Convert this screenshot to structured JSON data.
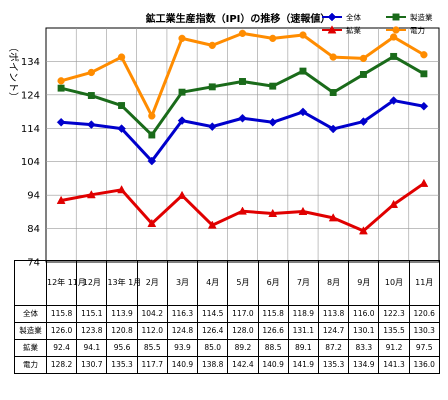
{
  "chart_data": {
    "type": "line",
    "title": "鉱工業生産指数（IPI）の推移（速報値）",
    "ylabel": "（ポイント）",
    "ylim": [
      74,
      144
    ],
    "yticks": [
      74,
      84,
      94,
      104,
      114,
      124,
      134
    ],
    "grid": true,
    "legend_position": "top-right",
    "categories": [
      "12年 11月",
      "12月",
      "13年 1月",
      "2月",
      "3月",
      "4月",
      "5月",
      "6月",
      "7月",
      "8月",
      "9月",
      "10月",
      "11月"
    ],
    "series": [
      {
        "name": "全体",
        "color": "#0000cc",
        "marker": "diamond",
        "values": [
          115.8,
          115.1,
          113.9,
          104.2,
          116.3,
          114.5,
          117.0,
          115.8,
          118.9,
          113.8,
          116.0,
          122.3,
          120.6
        ]
      },
      {
        "name": "製造業",
        "color": "#1a6b1a",
        "marker": "square",
        "values": [
          126.0,
          123.8,
          120.8,
          112.0,
          124.8,
          126.4,
          128.0,
          126.6,
          131.1,
          124.7,
          130.1,
          135.5,
          130.3
        ]
      },
      {
        "name": "鉱業",
        "color": "#e00000",
        "marker": "triangle",
        "values": [
          92.4,
          94.1,
          95.6,
          85.5,
          93.9,
          85.0,
          89.2,
          88.5,
          89.1,
          87.2,
          83.3,
          91.2,
          97.5
        ]
      },
      {
        "name": "電力",
        "color": "#ff8c00",
        "marker": "circle",
        "values": [
          128.2,
          130.7,
          135.3,
          117.7,
          140.9,
          138.8,
          142.4,
          140.9,
          141.9,
          135.3,
          134.9,
          141.3,
          136.0
        ]
      }
    ]
  },
  "table": {
    "row_labels": [
      "全体",
      "製造業",
      "鉱業",
      "電力"
    ]
  }
}
